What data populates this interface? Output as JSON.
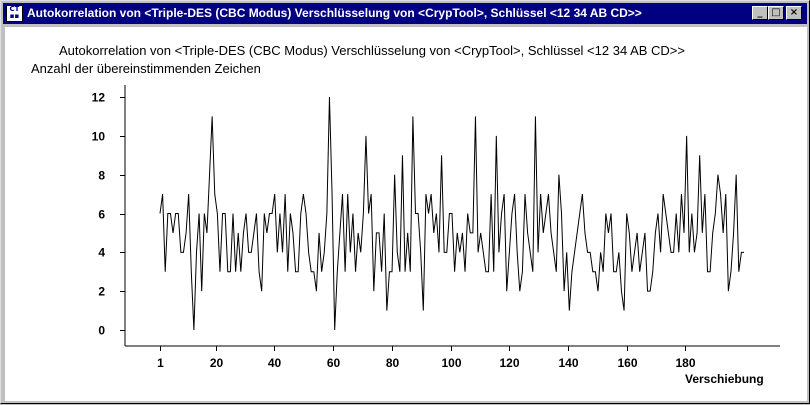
{
  "window": {
    "title": "Autokorrelation von <Triple-DES (CBC Modus) Verschlüsselung von <CrypTool>, Schlüssel <12 34 AB CD>>",
    "icon": "cryptool-app-icon",
    "buttons": {
      "minimize": "_",
      "maximize": "□",
      "close": "×"
    }
  },
  "chart_data": {
    "type": "line",
    "title": "Autokorrelation von <Triple-DES (CBC Modus) Verschlüsselung von <CrypTool>, Schlüssel <12 34 AB CD>>",
    "ylabel": "Anzahl der übereinstimmenden Zeichen",
    "xlabel": "Verschiebung",
    "xlim": [
      1,
      200
    ],
    "ylim": [
      0,
      12
    ],
    "x_ticks": [
      1,
      20,
      40,
      60,
      80,
      100,
      120,
      140,
      160,
      180
    ],
    "y_ticks": [
      0,
      2,
      4,
      6,
      8,
      10,
      12
    ],
    "grid": false,
    "x_start": 1,
    "series": [
      {
        "color": "#000000",
        "values": [
          6,
          7,
          3,
          6,
          6,
          5,
          6,
          6,
          4,
          4,
          5,
          7,
          3,
          0,
          4,
          6,
          2,
          6,
          5,
          8,
          11,
          7,
          6,
          3,
          6,
          6,
          3,
          3,
          6,
          3,
          5,
          3,
          5,
          6,
          4,
          4,
          5,
          6,
          3,
          2,
          6,
          5,
          6,
          6,
          7,
          4,
          6,
          4,
          7,
          3,
          6,
          5,
          3,
          3,
          6,
          7,
          6,
          4,
          3,
          3,
          2,
          5,
          3,
          4,
          6,
          12,
          7,
          0,
          3,
          5,
          7,
          3,
          7,
          4,
          6,
          3,
          5,
          4,
          6,
          10,
          6,
          7,
          2,
          5,
          5,
          3,
          6,
          1,
          3,
          3,
          8,
          4,
          3,
          9,
          3,
          5,
          3,
          11,
          6,
          6,
          4,
          1,
          7,
          6,
          7,
          5,
          6,
          4,
          9,
          4,
          4,
          6,
          6,
          3,
          5,
          4,
          5,
          3,
          6,
          5,
          5,
          11,
          4,
          5,
          4,
          3,
          3,
          7,
          3,
          10,
          4,
          6,
          7,
          2,
          4,
          6,
          7,
          4,
          2,
          3,
          7,
          5,
          4,
          3,
          11,
          4,
          7,
          5,
          6,
          7,
          5,
          4,
          3,
          8,
          6,
          2,
          4,
          1,
          3,
          4,
          5,
          6,
          7,
          5,
          4,
          4,
          3,
          3,
          2,
          4,
          3,
          6,
          5,
          6,
          3,
          3,
          4,
          2,
          1,
          6,
          5,
          3,
          4,
          5,
          3,
          4,
          5,
          2,
          2,
          3,
          5,
          6,
          4,
          7,
          6,
          5,
          4,
          4,
          6,
          4,
          7,
          5,
          10,
          4,
          6,
          4,
          5,
          9,
          5,
          7,
          3,
          3,
          5,
          6,
          8,
          7,
          5,
          7,
          2,
          3,
          5,
          8,
          3,
          4,
          4
        ]
      }
    ]
  }
}
